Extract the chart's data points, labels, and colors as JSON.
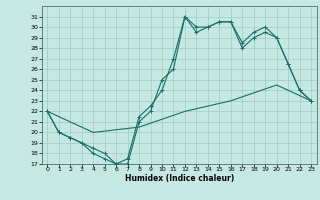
{
  "xlabel": "Humidex (Indice chaleur)",
  "xlim": [
    -0.5,
    23.5
  ],
  "ylim": [
    17,
    32
  ],
  "yticks": [
    17,
    18,
    19,
    20,
    21,
    22,
    23,
    24,
    25,
    26,
    27,
    28,
    29,
    30,
    31
  ],
  "xticks": [
    0,
    1,
    2,
    3,
    4,
    5,
    6,
    7,
    8,
    9,
    10,
    11,
    12,
    13,
    14,
    15,
    16,
    17,
    18,
    19,
    20,
    21,
    22,
    23
  ],
  "xtick_labels": [
    "0",
    "1",
    "2",
    "3",
    "4",
    "5",
    "6",
    "7",
    "8",
    "9",
    "10",
    "11",
    "12",
    "13",
    "14",
    "15",
    "16",
    "17",
    "18",
    "19",
    "20",
    "21",
    "22",
    "23"
  ],
  "bg_color": "#c5e8e2",
  "grid_color": "#9dccc4",
  "line_color": "#1a6e6a",
  "line1_x": [
    0,
    1,
    2,
    3,
    4,
    5,
    6,
    7,
    8,
    9,
    10,
    11,
    12,
    13,
    14,
    15,
    16,
    17,
    18,
    19,
    20,
    21,
    22,
    23
  ],
  "line1_y": [
    22,
    20,
    19.5,
    19,
    18,
    17.5,
    17,
    17,
    21,
    22,
    25,
    26,
    31,
    30,
    30,
    30.5,
    30.5,
    28,
    29,
    29.5,
    29,
    26.5,
    24,
    23
  ],
  "line2_x": [
    0,
    1,
    2,
    3,
    4,
    5,
    6,
    7,
    8,
    9,
    10,
    11,
    12,
    13,
    14,
    15,
    16,
    17,
    18,
    19,
    20,
    21,
    22,
    23
  ],
  "line2_y": [
    22,
    20,
    19.5,
    19,
    18.5,
    18,
    17,
    17.5,
    21.5,
    22.5,
    24,
    27,
    31,
    29.5,
    30,
    30.5,
    30.5,
    28.5,
    29.5,
    30,
    29,
    26.5,
    24,
    23
  ],
  "line3_x": [
    0,
    4,
    8,
    12,
    16,
    20,
    23
  ],
  "line3_y": [
    22,
    20,
    20.5,
    22,
    23,
    24.5,
    23
  ]
}
